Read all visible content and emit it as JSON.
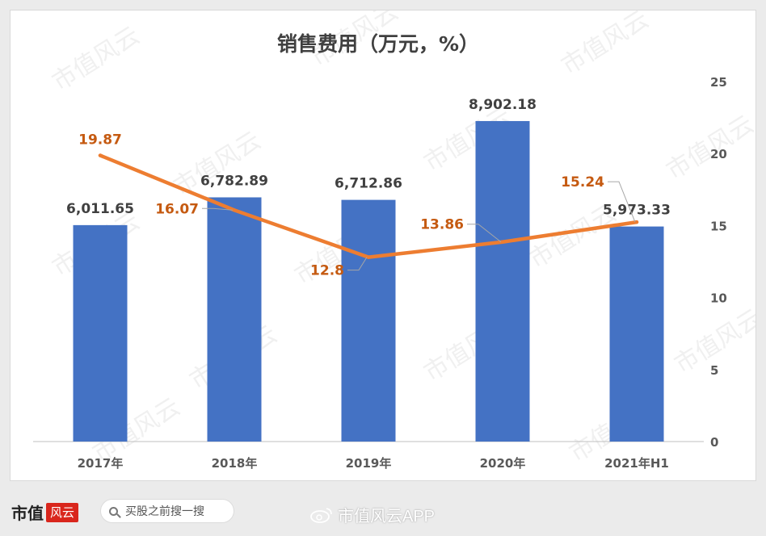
{
  "chart_data": {
    "type": "bar+line",
    "title": "销售费用（万元，%）",
    "categories": [
      "2017年",
      "2018年",
      "2019年",
      "2020年",
      "2021年H1"
    ],
    "series": [
      {
        "kind": "bar",
        "axis": "left",
        "values": [
          6011.65,
          6782.89,
          6712.86,
          8902.18,
          5973.33
        ],
        "labels": [
          "6,011.65",
          "6,782.89",
          "6,712.86",
          "8,902.18",
          "5,973.33"
        ],
        "color": "#4472c4"
      },
      {
        "kind": "line",
        "axis": "right",
        "values": [
          19.87,
          16.07,
          12.8,
          13.86,
          15.24
        ],
        "labels": [
          "19.87",
          "16.07",
          "12.8",
          "13.86",
          "15.24"
        ],
        "color": "#ed7d31",
        "label_color": "#c55a11"
      }
    ],
    "y_right": {
      "ticks": [
        "0",
        "5",
        "10",
        "15",
        "20",
        "25"
      ],
      "range": [
        0,
        25
      ]
    },
    "y_left_range": [
      0,
      10000
    ],
    "grid": false,
    "legend": "none"
  },
  "watermark_text": "市值风云",
  "footer": {
    "brand": "市值",
    "brand_mark": "风云",
    "search_text": "买股之前搜一搜",
    "weibo": "市值风云APP"
  }
}
